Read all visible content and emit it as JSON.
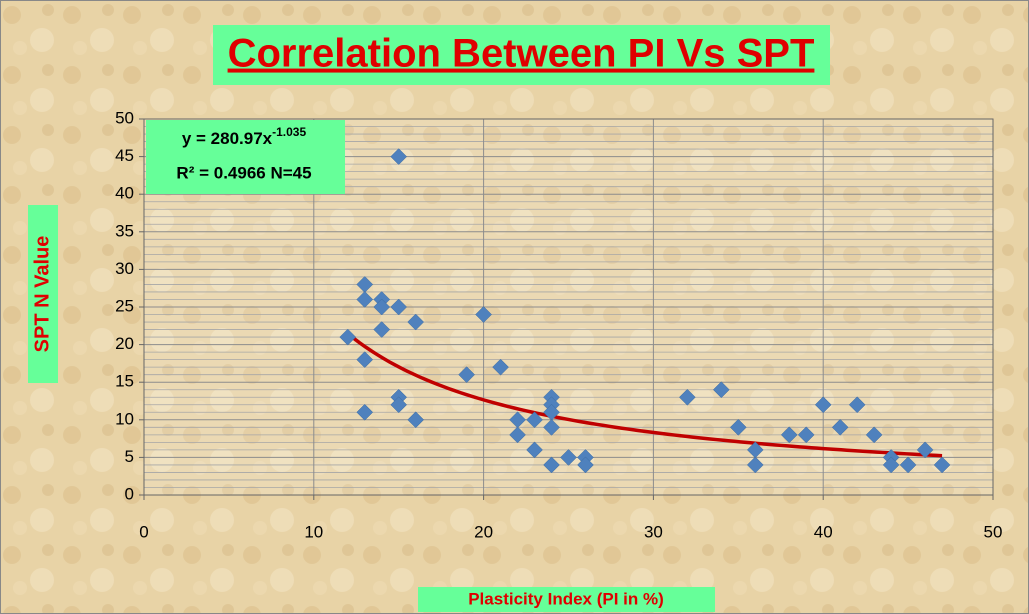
{
  "chart_data": {
    "type": "scatter",
    "title": "Correlation Between PI Vs SPT",
    "x_label": "Plasticity Index  (PI in %)",
    "y_label": "SPT N Value",
    "annotation": {
      "equation": "y = 280.97x",
      "exponent": "-1.035",
      "r2": "R² = 0.4966 N=45"
    },
    "x": [
      12,
      13,
      13,
      13,
      13,
      14,
      14,
      14,
      15,
      15,
      15,
      15,
      16,
      16,
      19,
      20,
      21,
      22,
      22,
      23,
      23,
      24,
      24,
      24,
      24,
      24,
      25,
      26,
      26,
      32,
      34,
      35,
      36,
      36,
      38,
      39,
      40,
      41,
      42,
      43,
      44,
      44,
      45,
      46,
      47
    ],
    "y": [
      21,
      28,
      26,
      18,
      11,
      26,
      25,
      22,
      45,
      25,
      13,
      12,
      23,
      10,
      16,
      24,
      17,
      10,
      8,
      10,
      6,
      13,
      12,
      11,
      9,
      4,
      5,
      5,
      4,
      13,
      14,
      9,
      6,
      4,
      8,
      8,
      12,
      9,
      12,
      8,
      5,
      4,
      4,
      6,
      4
    ],
    "color": "#4f81bd",
    "trendline": {
      "type": "power",
      "coefficient": 280.97,
      "exponent": -1.035,
      "color": "#c00000"
    },
    "xlim": [
      0,
      50
    ],
    "xticks": [
      0,
      10,
      20,
      30,
      40,
      50
    ],
    "ylim": [
      0,
      50
    ],
    "yticks": [
      0,
      5,
      10,
      15,
      20,
      25,
      30,
      35,
      40,
      45,
      50
    ],
    "grid": true,
    "minor_grid": true
  }
}
